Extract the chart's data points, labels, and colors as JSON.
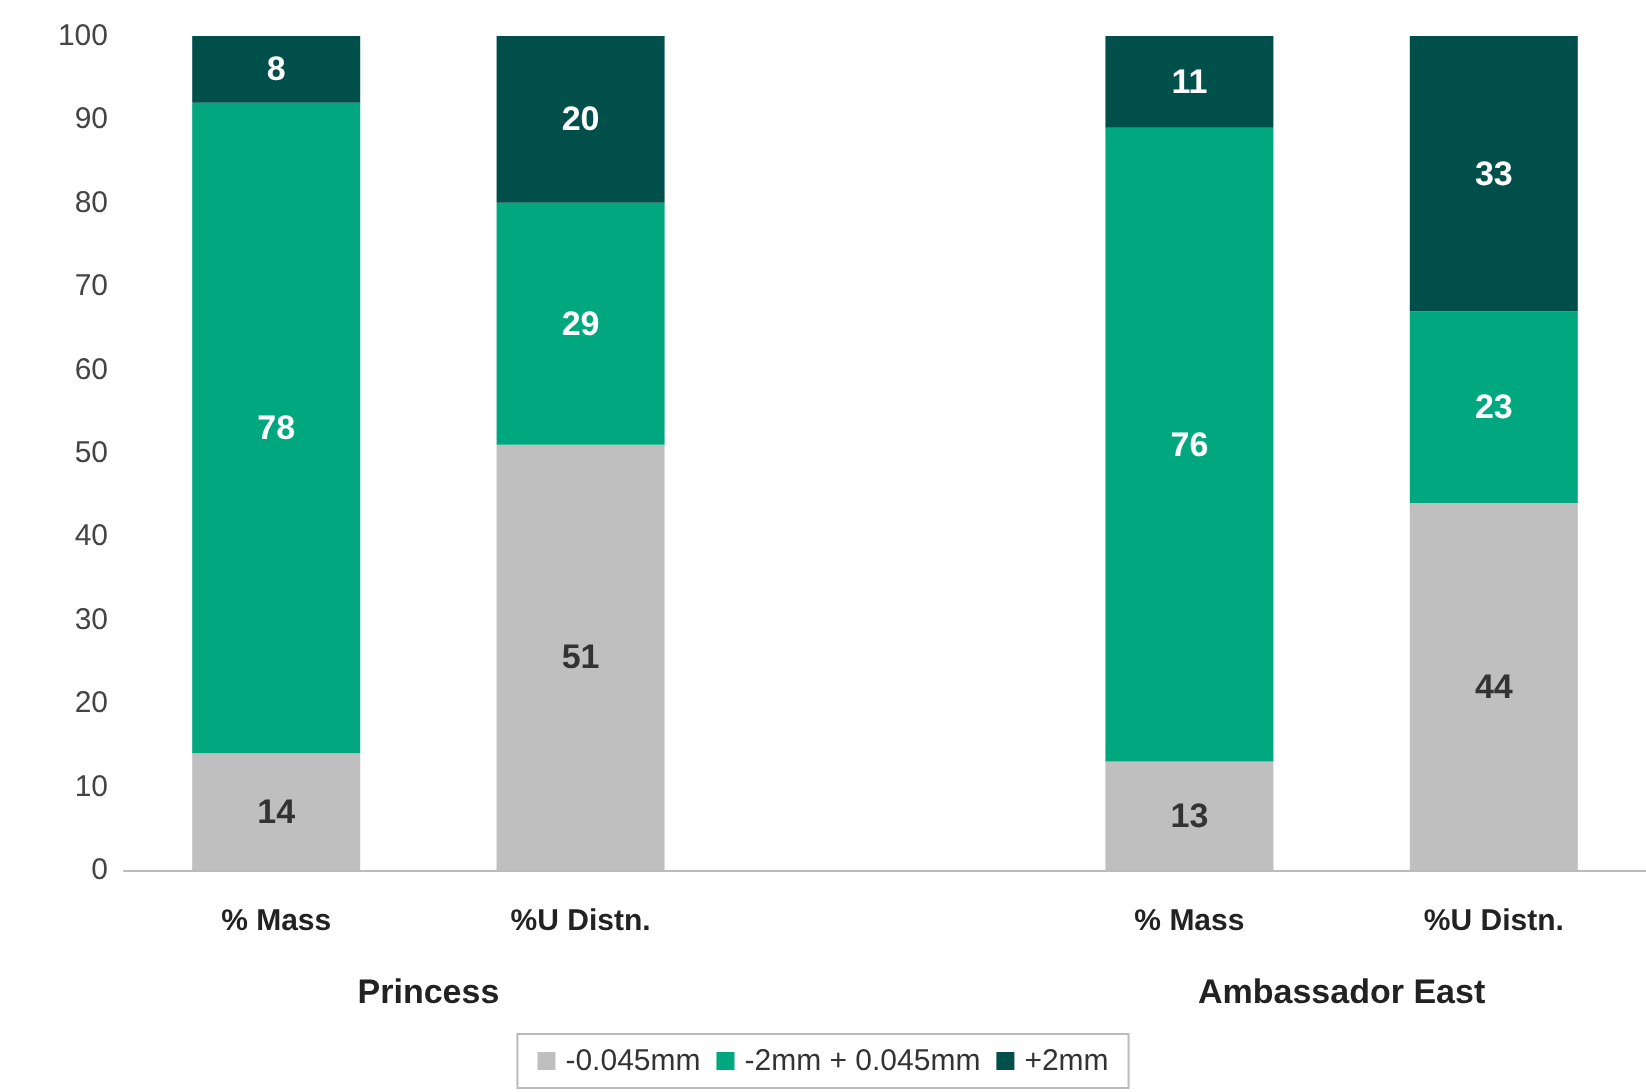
{
  "chart_data": {
    "type": "bar",
    "stacked": true,
    "categories": [
      "% Mass",
      "%U Distn.",
      null,
      "% Mass",
      "%U Distn."
    ],
    "series": [
      {
        "name": "-0.045mm",
        "color": "#bfbfbf",
        "values": [
          14,
          51,
          null,
          13,
          44
        ]
      },
      {
        "name": "-2mm + 0.045mm",
        "color": "#00a77f",
        "values": [
          78,
          29,
          null,
          76,
          23
        ]
      },
      {
        "name": "+2mm",
        "color": "#004f4b",
        "values": [
          8,
          20,
          null,
          11,
          33
        ]
      }
    ],
    "ylim": [
      0,
      100
    ],
    "yticks": [
      0,
      10,
      20,
      30,
      40,
      50,
      60,
      70,
      80,
      90,
      100
    ],
    "grid": false,
    "legend": "bottom",
    "data_labels": true,
    "annotations": [
      "Princess",
      "Ambassador East"
    ]
  }
}
